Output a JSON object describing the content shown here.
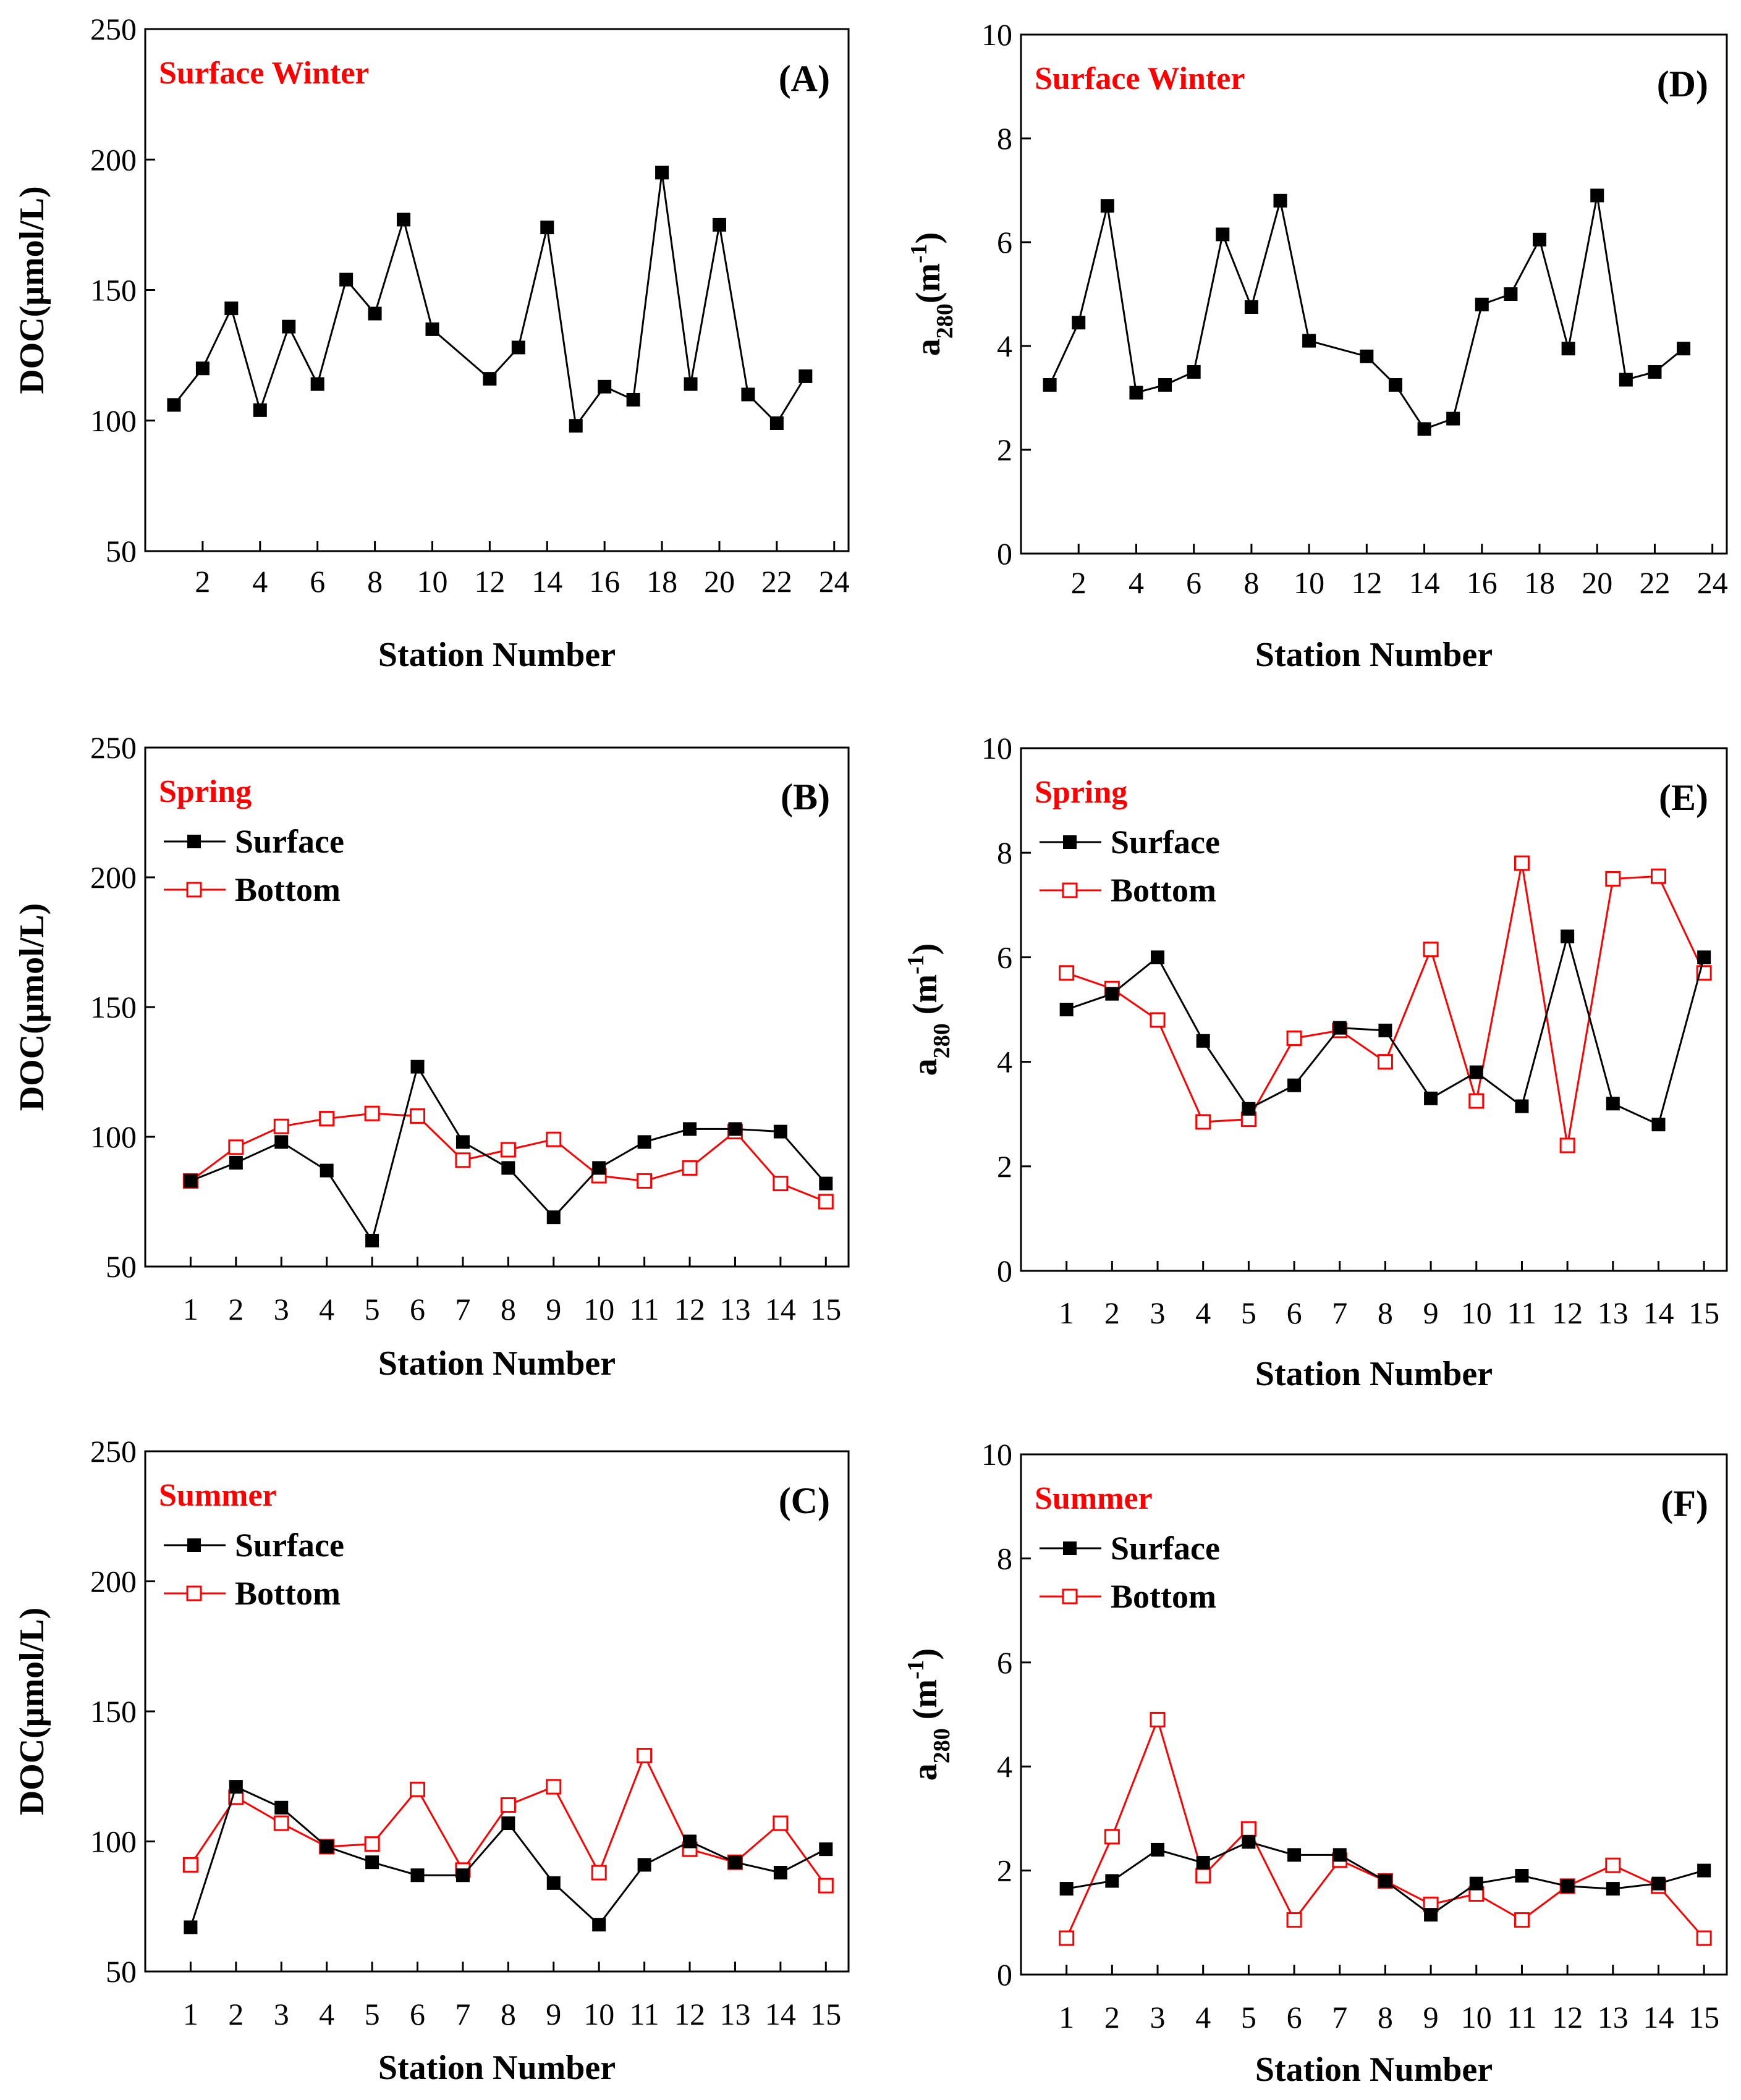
{
  "colors": {
    "surface": "#000000",
    "bottom": "#ff0000",
    "season": "#ff0000"
  },
  "chart_data": [
    {
      "id": "A",
      "type": "line",
      "panel_label": "(A)",
      "season": "Surface Winter",
      "xlabel": "Station Number",
      "ylabel": "DOC(μmol/L)",
      "xlim": [
        0,
        24.5
      ],
      "ylim": [
        50,
        250
      ],
      "xticks": [
        2,
        4,
        6,
        8,
        10,
        12,
        14,
        16,
        18,
        20,
        22,
        24
      ],
      "yticks": [
        50,
        100,
        150,
        200,
        250
      ],
      "series": [
        {
          "name": "Surface",
          "style": "filled",
          "x": [
            1,
            2,
            3,
            4,
            5,
            6,
            7,
            8,
            9,
            10,
            12,
            13,
            14,
            15,
            16,
            17,
            18,
            19,
            20,
            21,
            22,
            23
          ],
          "values": [
            106,
            120,
            143,
            104,
            136,
            114,
            154,
            141,
            177,
            135,
            116,
            128,
            174,
            98,
            113,
            108,
            195,
            114,
            175,
            110,
            99,
            117
          ]
        }
      ]
    },
    {
      "id": "B",
      "type": "line",
      "panel_label": "(B)",
      "season": "Spring",
      "xlabel": "Station Number",
      "ylabel": "DOC(μmol/L)",
      "xlim": [
        0,
        15.5
      ],
      "ylim": [
        50,
        250
      ],
      "xticks": [
        1,
        2,
        3,
        4,
        5,
        6,
        7,
        8,
        9,
        10,
        11,
        12,
        13,
        14,
        15
      ],
      "yticks": [
        50,
        100,
        150,
        200,
        250
      ],
      "legend": [
        "Surface",
        "Bottom"
      ],
      "series": [
        {
          "name": "Surface",
          "style": "filled",
          "x": [
            1,
            2,
            3,
            4,
            5,
            6,
            7,
            8,
            9,
            10,
            11,
            12,
            13,
            14,
            15
          ],
          "values": [
            83,
            90,
            98,
            87,
            60,
            127,
            98,
            88,
            69,
            88,
            98,
            103,
            103,
            102,
            82
          ]
        },
        {
          "name": "Bottom",
          "style": "open",
          "x": [
            1,
            2,
            3,
            4,
            5,
            6,
            7,
            8,
            9,
            10,
            11,
            12,
            13,
            14,
            15
          ],
          "values": [
            83,
            96,
            104,
            107,
            109,
            108,
            91,
            95,
            99,
            85,
            83,
            88,
            102,
            82,
            75
          ]
        }
      ]
    },
    {
      "id": "C",
      "type": "line",
      "panel_label": "(C)",
      "season": "Summer",
      "xlabel": "Station Number",
      "ylabel": "DOC(μmol/L)",
      "xlim": [
        0,
        15.5
      ],
      "ylim": [
        50,
        250
      ],
      "xticks": [
        1,
        2,
        3,
        4,
        5,
        6,
        7,
        8,
        9,
        10,
        11,
        12,
        13,
        14,
        15
      ],
      "yticks": [
        50,
        100,
        150,
        200,
        250
      ],
      "legend": [
        "Surface",
        "Bottom"
      ],
      "series": [
        {
          "name": "Surface",
          "style": "filled",
          "x": [
            1,
            2,
            3,
            4,
            5,
            6,
            7,
            8,
            9,
            10,
            11,
            12,
            13,
            14,
            15
          ],
          "values": [
            67,
            121,
            113,
            98,
            92,
            87,
            87,
            107,
            84,
            68,
            91,
            100,
            92,
            88,
            97
          ]
        },
        {
          "name": "Bottom",
          "style": "open",
          "x": [
            1,
            2,
            3,
            4,
            5,
            6,
            7,
            8,
            9,
            10,
            11,
            12,
            13,
            14,
            15
          ],
          "values": [
            91,
            117,
            107,
            98,
            99,
            120,
            89,
            114,
            121,
            88,
            133,
            97,
            92,
            107,
            83
          ]
        }
      ]
    },
    {
      "id": "D",
      "type": "line",
      "panel_label": "(D)",
      "season": "Surface Winter",
      "xlabel": "Station Number",
      "ylabel": "a280(m-1)",
      "ylabel_main": "a",
      "ylabel_sub": "280",
      "ylabel_rest": "(m",
      "ylabel_sup": "-1",
      "ylabel_close": ")",
      "xlim": [
        0,
        24.5
      ],
      "ylim": [
        0,
        10
      ],
      "xticks": [
        2,
        4,
        6,
        8,
        10,
        12,
        14,
        16,
        18,
        20,
        22,
        24
      ],
      "yticks": [
        0,
        2,
        4,
        6,
        8,
        10
      ],
      "series": [
        {
          "name": "Surface",
          "style": "filled",
          "x": [
            1,
            2,
            3,
            4,
            5,
            6,
            7,
            8,
            9,
            10,
            12,
            13,
            14,
            15,
            16,
            17,
            18,
            19,
            20,
            21,
            22,
            23
          ],
          "values": [
            3.25,
            4.45,
            6.7,
            3.1,
            3.25,
            3.5,
            6.15,
            4.75,
            6.8,
            4.1,
            3.8,
            3.25,
            2.4,
            2.6,
            4.8,
            5.0,
            6.05,
            3.95,
            6.9,
            3.35,
            3.5,
            3.95
          ]
        }
      ]
    },
    {
      "id": "E",
      "type": "line",
      "panel_label": "(E)",
      "season": "Spring",
      "xlabel": "Station Number",
      "ylabel": "a280 (m-1)",
      "ylabel_main": "a",
      "ylabel_sub": "280",
      "ylabel_rest": " (m",
      "ylabel_sup": "-1",
      "ylabel_close": ")",
      "xlim": [
        0,
        15.5
      ],
      "ylim": [
        0,
        10
      ],
      "xticks": [
        1,
        2,
        3,
        4,
        5,
        6,
        7,
        8,
        9,
        10,
        11,
        12,
        13,
        14,
        15
      ],
      "yticks": [
        0,
        2,
        4,
        6,
        8,
        10
      ],
      "legend": [
        "Surface",
        "Bottom"
      ],
      "series": [
        {
          "name": "Surface",
          "style": "filled",
          "x": [
            1,
            2,
            3,
            4,
            5,
            6,
            7,
            8,
            9,
            10,
            11,
            12,
            13,
            14,
            15
          ],
          "values": [
            5.0,
            5.3,
            6.0,
            4.4,
            3.1,
            3.55,
            4.65,
            4.6,
            3.3,
            3.8,
            3.15,
            6.4,
            3.2,
            2.8,
            6.0
          ]
        },
        {
          "name": "Bottom",
          "style": "open",
          "x": [
            1,
            2,
            3,
            4,
            5,
            6,
            7,
            8,
            9,
            10,
            11,
            12,
            13,
            14,
            15
          ],
          "values": [
            5.7,
            5.4,
            4.8,
            2.85,
            2.9,
            4.45,
            4.6,
            4.0,
            6.15,
            3.25,
            7.8,
            2.4,
            7.5,
            7.55,
            5.7
          ]
        }
      ]
    },
    {
      "id": "F",
      "type": "line",
      "panel_label": "(F)",
      "season": "Summer",
      "xlabel": "Station Number",
      "ylabel": "a280 (m-1)",
      "ylabel_main": "a",
      "ylabel_sub": "280",
      "ylabel_rest": " (m",
      "ylabel_sup": "-1",
      "ylabel_close": ")",
      "xlim": [
        0,
        15.5
      ],
      "ylim": [
        0,
        10
      ],
      "xticks": [
        1,
        2,
        3,
        4,
        5,
        6,
        7,
        8,
        9,
        10,
        11,
        12,
        13,
        14,
        15
      ],
      "yticks": [
        0,
        2,
        4,
        6,
        8,
        10
      ],
      "legend": [
        "Surface",
        "Bottom"
      ],
      "series": [
        {
          "name": "Surface",
          "style": "filled",
          "x": [
            1,
            2,
            3,
            4,
            5,
            6,
            7,
            8,
            9,
            10,
            11,
            12,
            13,
            14,
            15
          ],
          "values": [
            1.65,
            1.8,
            2.4,
            2.15,
            2.55,
            2.3,
            2.3,
            1.8,
            1.15,
            1.75,
            1.9,
            1.7,
            1.65,
            1.75,
            2.0
          ]
        },
        {
          "name": "Bottom",
          "style": "open",
          "x": [
            1,
            2,
            3,
            4,
            5,
            6,
            7,
            8,
            9,
            10,
            11,
            12,
            13,
            14,
            15
          ],
          "values": [
            0.7,
            2.65,
            4.9,
            1.9,
            2.8,
            1.05,
            2.2,
            1.8,
            1.35,
            1.55,
            1.05,
            1.7,
            2.1,
            1.7,
            0.7
          ]
        }
      ]
    }
  ]
}
